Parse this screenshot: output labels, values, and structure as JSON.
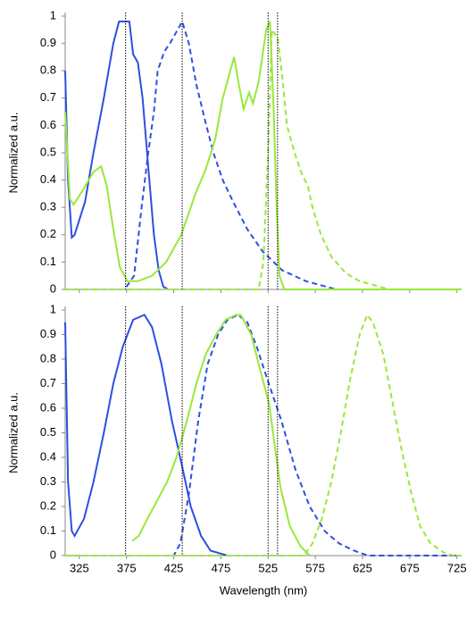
{
  "chart_data": [
    {
      "type": "line",
      "y_label": "Normalized a.u.",
      "xlim": [
        310,
        730
      ],
      "ylim": [
        0,
        1
      ],
      "xticks": [
        325,
        375,
        425,
        475,
        525,
        575,
        625,
        675,
        725
      ],
      "yticks": [
        0,
        0.1,
        0.2,
        0.3,
        0.4,
        0.5,
        0.6,
        0.7,
        0.8,
        0.9,
        1
      ],
      "vlines": [
        374,
        434,
        525,
        535
      ],
      "series": [
        {
          "color": "#2f4fe0",
          "dash": false,
          "x": [
            310,
            313,
            317,
            320,
            331,
            340,
            351,
            361,
            367,
            378,
            382,
            387,
            392,
            398,
            404,
            409,
            414,
            419
          ],
          "values": [
            0.8,
            0.4,
            0.19,
            0.2,
            0.32,
            0.5,
            0.7,
            0.9,
            0.98,
            0.98,
            0.86,
            0.83,
            0.7,
            0.45,
            0.2,
            0.07,
            0.01,
            0
          ]
        },
        {
          "color": "#2f4fe0",
          "dash": true,
          "x": [
            310,
            373,
            383,
            391,
            398,
            404,
            408,
            415,
            421,
            434,
            441,
            449,
            458,
            467,
            477,
            488,
            503,
            519,
            540,
            565,
            597,
            730
          ],
          "values": [
            0,
            0,
            0.05,
            0.3,
            0.5,
            0.65,
            0.8,
            0.87,
            0.9,
            0.98,
            0.9,
            0.75,
            0.62,
            0.5,
            0.4,
            0.32,
            0.22,
            0.14,
            0.07,
            0.03,
            0,
            0
          ]
        },
        {
          "color": "#99e83a",
          "dash": false,
          "x": [
            310,
            315,
            319,
            330,
            340,
            348,
            354,
            361,
            368,
            376,
            387,
            402,
            417,
            433,
            448,
            459,
            469,
            477,
            489,
            494,
            499,
            505,
            509,
            515,
            523,
            527,
            531,
            534,
            537,
            542,
            730
          ],
          "values": [
            0.65,
            0.33,
            0.31,
            0.37,
            0.43,
            0.45,
            0.38,
            0.22,
            0.08,
            0.03,
            0.03,
            0.05,
            0.1,
            0.2,
            0.35,
            0.44,
            0.55,
            0.7,
            0.85,
            0.75,
            0.66,
            0.72,
            0.68,
            0.76,
            0.95,
            0.98,
            0.65,
            0.3,
            0.05,
            0,
            0
          ]
        },
        {
          "color": "#99e83a",
          "dash": true,
          "x": [
            310,
            515,
            520,
            525,
            529,
            535,
            540,
            545,
            553,
            561,
            567,
            572,
            581,
            592,
            607,
            622,
            643,
            653,
            730
          ],
          "values": [
            0,
            0,
            0.1,
            0.5,
            0.95,
            0.92,
            0.78,
            0.6,
            0.5,
            0.42,
            0.38,
            0.3,
            0.2,
            0.12,
            0.06,
            0.03,
            0.01,
            0,
            0
          ]
        }
      ]
    },
    {
      "type": "line",
      "y_label": "Normalized a.u.",
      "x_label": "Wavelength (nm)",
      "xlim": [
        310,
        730
      ],
      "ylim": [
        0,
        1
      ],
      "xticks": [
        325,
        375,
        425,
        475,
        525,
        575,
        625,
        675,
        725
      ],
      "yticks": [
        0,
        0.1,
        0.2,
        0.3,
        0.4,
        0.5,
        0.6,
        0.7,
        0.8,
        0.9,
        1
      ],
      "vlines": [
        374,
        434,
        525,
        535
      ],
      "series": [
        {
          "color": "#2f4fe0",
          "dash": false,
          "x": [
            310,
            313,
            317,
            320,
            330,
            340,
            351,
            361,
            371,
            382,
            394,
            402,
            412,
            423,
            433,
            443,
            454,
            464,
            482
          ],
          "values": [
            0.95,
            0.3,
            0.1,
            0.08,
            0.15,
            0.3,
            0.5,
            0.7,
            0.85,
            0.96,
            0.98,
            0.93,
            0.78,
            0.55,
            0.38,
            0.2,
            0.08,
            0.02,
            0
          ]
        },
        {
          "color": "#2f4fe0",
          "dash": true,
          "x": [
            310,
            425,
            432,
            441,
            451,
            461,
            472,
            482,
            493,
            503,
            513,
            524,
            539,
            554,
            569,
            585,
            600,
            616,
            631,
            730
          ],
          "values": [
            0,
            0,
            0.05,
            0.25,
            0.55,
            0.78,
            0.9,
            0.96,
            0.98,
            0.95,
            0.85,
            0.72,
            0.55,
            0.35,
            0.2,
            0.1,
            0.05,
            0.02,
            0,
            0
          ]
        },
        {
          "color": "#99e83a",
          "dash": false,
          "x": [
            381,
            388,
            397,
            407,
            418,
            428,
            439,
            449,
            459,
            470,
            480,
            491,
            496,
            507,
            517,
            526,
            538,
            548,
            559,
            569
          ],
          "values": [
            0.06,
            0.08,
            0.15,
            0.22,
            0.3,
            0.4,
            0.55,
            0.7,
            0.82,
            0.9,
            0.96,
            0.98,
            0.98,
            0.9,
            0.75,
            0.62,
            0.28,
            0.12,
            0.04,
            0
          ]
        },
        {
          "color": "#99e83a",
          "dash": true,
          "x": [
            310,
            563,
            572,
            582,
            592,
            602,
            612,
            622,
            630,
            636,
            647,
            657,
            667,
            677,
            686,
            697,
            712,
            722,
            730
          ],
          "values": [
            0,
            0,
            0.05,
            0.15,
            0.3,
            0.5,
            0.72,
            0.9,
            0.98,
            0.95,
            0.82,
            0.62,
            0.42,
            0.25,
            0.12,
            0.05,
            0.01,
            0,
            0
          ]
        }
      ]
    }
  ]
}
